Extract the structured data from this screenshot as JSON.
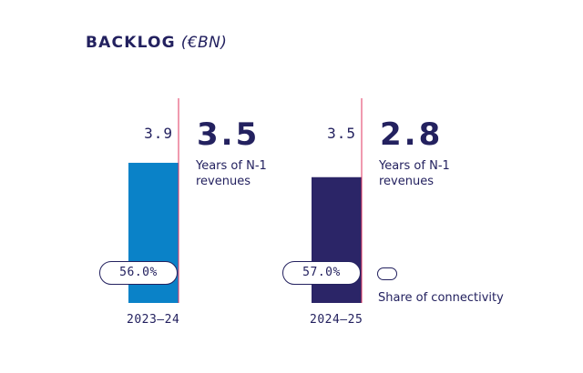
{
  "colors": {
    "navy": "#23215f",
    "accent_line": "#e0365f",
    "bar_2023": "#0a82c8",
    "bar_2024": "#2b2567"
  },
  "header": {
    "title": "BACKLOG",
    "unit": "(€BN)"
  },
  "chart_data": {
    "type": "bar",
    "title": "BACKLOG",
    "unit": "(€BN)",
    "categories": [
      "2023–24",
      "2024–25"
    ],
    "values": [
      3.9,
      3.5
    ],
    "value_labels": [
      "3.9",
      "3.5"
    ],
    "years_of_revenue": [
      "3.5",
      "2.8"
    ],
    "years_caption": "Years of N-1 revenues",
    "share_of_connectivity": [
      "56.0%",
      "57.0%"
    ],
    "share_fraction": [
      0.56,
      0.57
    ],
    "legend": "Share of connectivity",
    "grid": false
  }
}
